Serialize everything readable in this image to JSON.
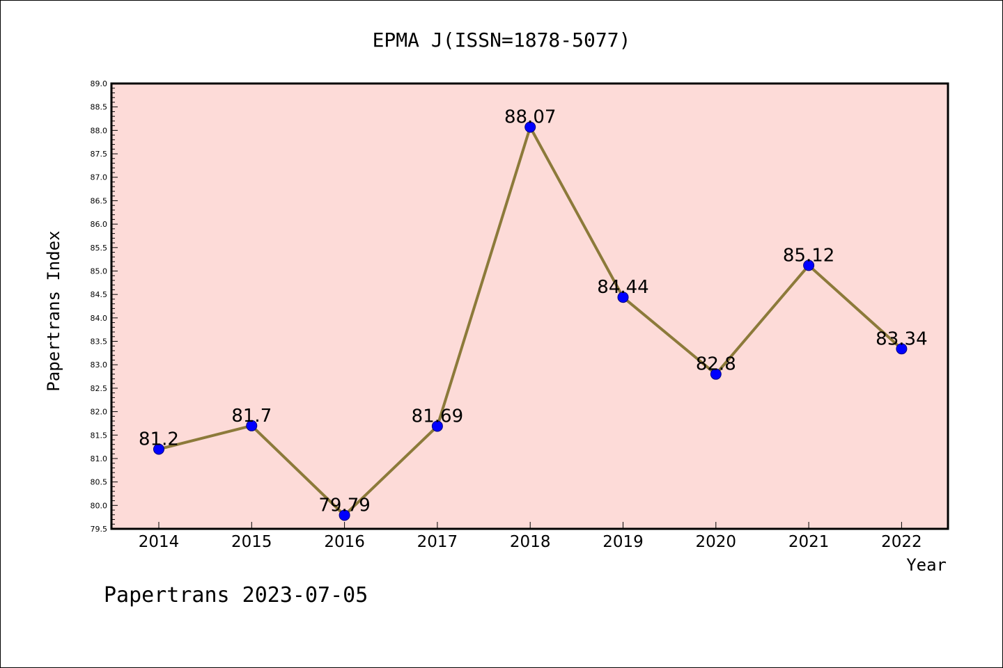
{
  "chart_data": {
    "type": "line",
    "title": "EPMA J(ISSN=1878-5077)",
    "xlabel": "Year",
    "ylabel": "Papertrans Index",
    "x": [
      "2014",
      "2015",
      "2016",
      "2017",
      "2018",
      "2019",
      "2020",
      "2021",
      "2022"
    ],
    "series": [
      {
        "values": [
          81.2,
          81.7,
          79.79,
          81.69,
          88.07,
          84.44,
          82.8,
          85.12,
          83.34
        ],
        "data_labels": [
          "81.2",
          "81.7",
          "79.79",
          "81.69",
          "88.07",
          "84.44",
          "82.8",
          "85.12",
          "83.34"
        ]
      }
    ],
    "ylim": [
      79.5,
      89.0
    ],
    "yticks": [
      "79.5",
      "80.0",
      "80.5",
      "81.0",
      "81.5",
      "82.0",
      "82.5",
      "83.0",
      "83.5",
      "84.0",
      "84.5",
      "85.0",
      "85.5",
      "86.0",
      "86.5",
      "87.0",
      "87.5",
      "88.0",
      "88.5",
      "89.0"
    ],
    "grid": false,
    "legend": "none",
    "colors": {
      "plot_background": "#fddbd8",
      "line": "#8c7a3a",
      "marker": "#0000ff",
      "marker_edge": "#000080"
    },
    "footer": "Papertrans 2023-07-05"
  }
}
